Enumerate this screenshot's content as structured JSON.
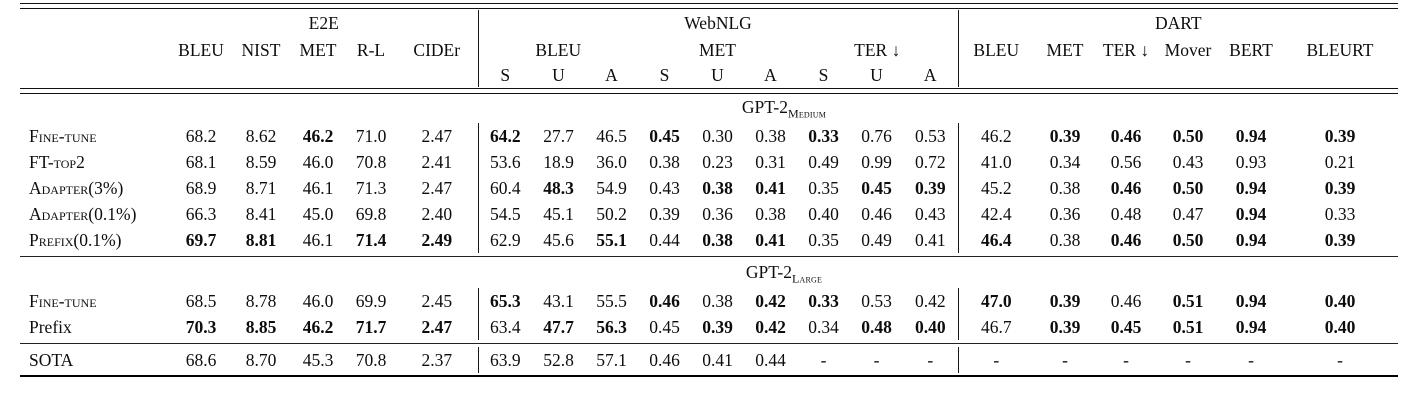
{
  "table": {
    "header": {
      "groups": [
        "E2E",
        "WebNLG",
        "DART"
      ],
      "e2e": [
        "BLEU",
        "NIST",
        "MET",
        "R-L",
        "CIDEr"
      ],
      "webnlg_metrics": [
        "BLEU",
        "MET",
        "TER ↓"
      ],
      "sua": [
        "S",
        "U",
        "A",
        "S",
        "U",
        "A",
        "S",
        "U",
        "A"
      ],
      "dart": [
        "BLEU",
        "MET",
        "TER ↓",
        "Mover",
        "BERT",
        "BLEURT"
      ]
    },
    "sections": [
      {
        "title_base": "GPT-2",
        "title_sub": "Medium",
        "rows": [
          {
            "label": "Fine-tune",
            "sc": true,
            "cells": [
              [
                "68.2",
                0
              ],
              [
                "8.62",
                0
              ],
              [
                "46.2",
                1
              ],
              [
                "71.0",
                0
              ],
              [
                "2.47",
                0
              ],
              [
                "64.2",
                1
              ],
              [
                "27.7",
                0
              ],
              [
                "46.5",
                0
              ],
              [
                "0.45",
                1
              ],
              [
                "0.30",
                0
              ],
              [
                "0.38",
                0
              ],
              [
                "0.33",
                1
              ],
              [
                "0.76",
                0
              ],
              [
                "0.53",
                0
              ],
              [
                "46.2",
                0
              ],
              [
                "0.39",
                1
              ],
              [
                "0.46",
                1
              ],
              [
                "0.50",
                1
              ],
              [
                "0.94",
                1
              ],
              [
                "0.39",
                1
              ]
            ]
          },
          {
            "label": "FT-top2",
            "sc": true,
            "cells": [
              [
                "68.1",
                0
              ],
              [
                "8.59",
                0
              ],
              [
                "46.0",
                0
              ],
              [
                "70.8",
                0
              ],
              [
                "2.41",
                0
              ],
              [
                "53.6",
                0
              ],
              [
                "18.9",
                0
              ],
              [
                "36.0",
                0
              ],
              [
                "0.38",
                0
              ],
              [
                "0.23",
                0
              ],
              [
                "0.31",
                0
              ],
              [
                "0.49",
                0
              ],
              [
                "0.99",
                0
              ],
              [
                "0.72",
                0
              ],
              [
                "41.0",
                0
              ],
              [
                "0.34",
                0
              ],
              [
                "0.56",
                0
              ],
              [
                "0.43",
                0
              ],
              [
                "0.93",
                0
              ],
              [
                "0.21",
                0
              ]
            ]
          },
          {
            "label": "Adapter(3%)",
            "sc": true,
            "cells": [
              [
                "68.9",
                0
              ],
              [
                "8.71",
                0
              ],
              [
                "46.1",
                0
              ],
              [
                "71.3",
                0
              ],
              [
                "2.47",
                0
              ],
              [
                "60.4",
                0
              ],
              [
                "48.3",
                1
              ],
              [
                "54.9",
                0
              ],
              [
                "0.43",
                0
              ],
              [
                "0.38",
                1
              ],
              [
                "0.41",
                1
              ],
              [
                "0.35",
                0
              ],
              [
                "0.45",
                1
              ],
              [
                "0.39",
                1
              ],
              [
                "45.2",
                0
              ],
              [
                "0.38",
                0
              ],
              [
                "0.46",
                1
              ],
              [
                "0.50",
                1
              ],
              [
                "0.94",
                1
              ],
              [
                "0.39",
                1
              ]
            ]
          },
          {
            "label": "Adapter(0.1%)",
            "sc": true,
            "cells": [
              [
                "66.3",
                0
              ],
              [
                "8.41",
                0
              ],
              [
                "45.0",
                0
              ],
              [
                "69.8",
                0
              ],
              [
                "2.40",
                0
              ],
              [
                "54.5",
                0
              ],
              [
                "45.1",
                0
              ],
              [
                "50.2",
                0
              ],
              [
                "0.39",
                0
              ],
              [
                "0.36",
                0
              ],
              [
                "0.38",
                0
              ],
              [
                "0.40",
                0
              ],
              [
                "0.46",
                0
              ],
              [
                "0.43",
                0
              ],
              [
                "42.4",
                0
              ],
              [
                "0.36",
                0
              ],
              [
                "0.48",
                0
              ],
              [
                "0.47",
                0
              ],
              [
                "0.94",
                1
              ],
              [
                "0.33",
                0
              ]
            ]
          },
          {
            "label": "Prefix(0.1%)",
            "sc": true,
            "cells": [
              [
                "69.7",
                1
              ],
              [
                "8.81",
                1
              ],
              [
                "46.1",
                0
              ],
              [
                "71.4",
                1
              ],
              [
                "2.49",
                1
              ],
              [
                "62.9",
                0
              ],
              [
                "45.6",
                0
              ],
              [
                "55.1",
                1
              ],
              [
                "0.44",
                0
              ],
              [
                "0.38",
                1
              ],
              [
                "0.41",
                1
              ],
              [
                "0.35",
                0
              ],
              [
                "0.49",
                0
              ],
              [
                "0.41",
                0
              ],
              [
                "46.4",
                1
              ],
              [
                "0.38",
                0
              ],
              [
                "0.46",
                1
              ],
              [
                "0.50",
                1
              ],
              [
                "0.94",
                1
              ],
              [
                "0.39",
                1
              ]
            ]
          }
        ]
      },
      {
        "title_base": "GPT-2",
        "title_sub": "Large",
        "rows": [
          {
            "label": "Fine-tune",
            "sc": true,
            "cells": [
              [
                "68.5",
                0
              ],
              [
                "8.78",
                0
              ],
              [
                "46.0",
                0
              ],
              [
                "69.9",
                0
              ],
              [
                "2.45",
                0
              ],
              [
                "65.3",
                1
              ],
              [
                "43.1",
                0
              ],
              [
                "55.5",
                0
              ],
              [
                "0.46",
                1
              ],
              [
                "0.38",
                0
              ],
              [
                "0.42",
                1
              ],
              [
                "0.33",
                1
              ],
              [
                "0.53",
                0
              ],
              [
                "0.42",
                0
              ],
              [
                "47.0",
                1
              ],
              [
                "0.39",
                1
              ],
              [
                "0.46",
                0
              ],
              [
                "0.51",
                1
              ],
              [
                "0.94",
                1
              ],
              [
                "0.40",
                1
              ]
            ]
          },
          {
            "label": "Prefix",
            "sc": false,
            "cells": [
              [
                "70.3",
                1
              ],
              [
                "8.85",
                1
              ],
              [
                "46.2",
                1
              ],
              [
                "71.7",
                1
              ],
              [
                "2.47",
                1
              ],
              [
                "63.4",
                0
              ],
              [
                "47.7",
                1
              ],
              [
                "56.3",
                1
              ],
              [
                "0.45",
                0
              ],
              [
                "0.39",
                1
              ],
              [
                "0.42",
                1
              ],
              [
                "0.34",
                0
              ],
              [
                "0.48",
                1
              ],
              [
                "0.40",
                1
              ],
              [
                "46.7",
                0
              ],
              [
                "0.39",
                1
              ],
              [
                "0.45",
                1
              ],
              [
                "0.51",
                1
              ],
              [
                "0.94",
                1
              ],
              [
                "0.40",
                1
              ]
            ]
          }
        ]
      }
    ],
    "footer": {
      "label": "SOTA",
      "sc": false,
      "cells": [
        [
          "68.6",
          0
        ],
        [
          "8.70",
          0
        ],
        [
          "45.3",
          0
        ],
        [
          "70.8",
          0
        ],
        [
          "2.37",
          0
        ],
        [
          "63.9",
          0
        ],
        [
          "52.8",
          0
        ],
        [
          "57.1",
          0
        ],
        [
          "0.46",
          0
        ],
        [
          "0.41",
          0
        ],
        [
          "0.44",
          0
        ],
        [
          "-",
          0
        ],
        [
          "-",
          0
        ],
        [
          "-",
          0
        ],
        [
          "-",
          0
        ],
        [
          "-",
          0
        ],
        [
          "-",
          0
        ],
        [
          "-",
          0
        ],
        [
          "-",
          0
        ],
        [
          "-",
          0
        ]
      ]
    }
  }
}
